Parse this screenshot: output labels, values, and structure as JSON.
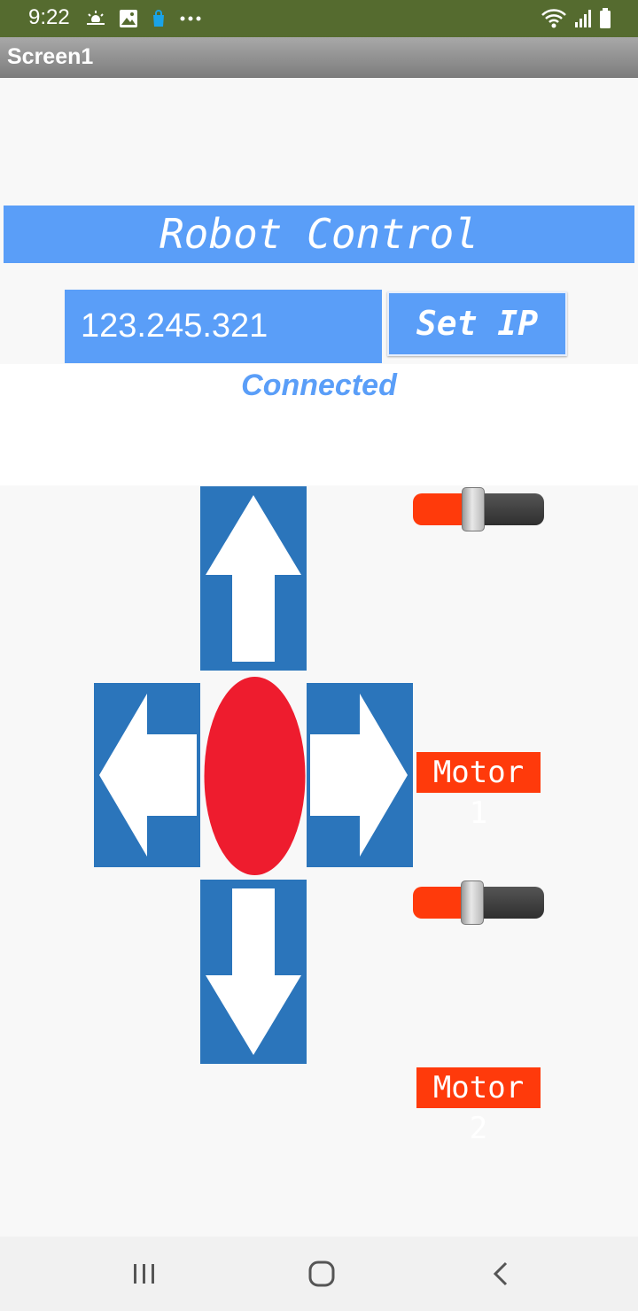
{
  "status_bar": {
    "time": "9:22",
    "left_icons": [
      "weather-icon",
      "image-icon",
      "bag-icon",
      "more-dots-icon"
    ],
    "right_icons": [
      "wifi-icon",
      "signal-icon",
      "battery-icon"
    ]
  },
  "app": {
    "screen_title": "Screen1"
  },
  "main": {
    "banner_title": "Robot Control",
    "ip_value": "123.245.321",
    "set_ip_label": "Set IP",
    "connection_status": "Connected",
    "directions": [
      "up-arrow-icon",
      "left-arrow-icon",
      "stop-icon",
      "right-arrow-icon",
      "down-arrow-icon"
    ],
    "motor1": {
      "label": "Motor 1",
      "slider_level": 0.46
    },
    "motor2": {
      "label": "Motor 2",
      "slider_level": 0.45
    }
  },
  "colors": {
    "accent_blue": "#5a9ef8",
    "dpad_blue": "#2b75bb",
    "stop_red": "#ee1c2e",
    "motor_orange": "#ff3a0b",
    "status_green": "#556b2f"
  },
  "nav_bar": {
    "buttons": [
      "recents-icon",
      "home-icon",
      "back-icon"
    ]
  }
}
